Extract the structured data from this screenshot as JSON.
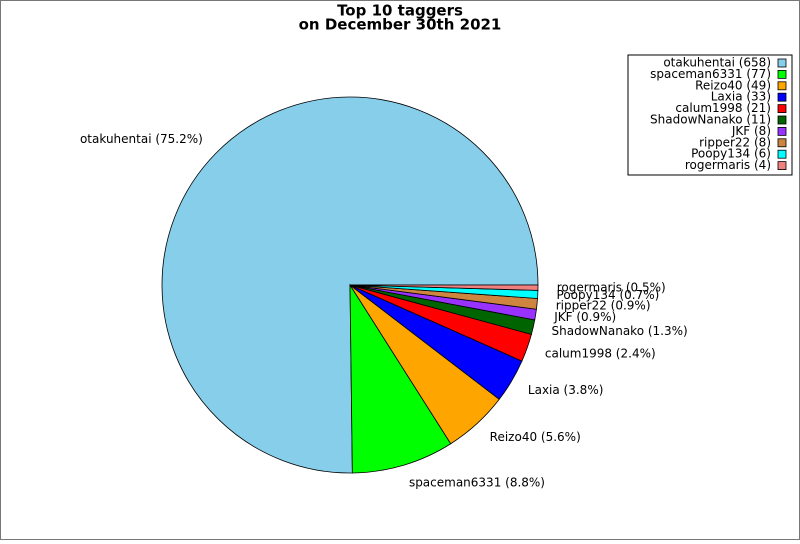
{
  "chart_data": {
    "type": "pie",
    "title": [
      "Top 10 taggers",
      "on December 30th 2021"
    ],
    "categories": [
      "otakuhentai (658)",
      "spaceman6331 (77)",
      "Reizo40 (49)",
      "Laxia (33)",
      "calum1998 (21)",
      "ShadowNanako (11)",
      "JKF (8)",
      "ripper22 (8)",
      "Poopy134 (6)",
      "rogermaris (4)"
    ],
    "values": [
      658,
      77,
      49,
      33,
      21,
      11,
      8,
      8,
      6,
      4
    ],
    "slice_labels": [
      "otakuhentai (75.2%)",
      "spaceman6331 (8.8%)",
      "Reizo40 (5.6%)",
      "Laxia (3.8%)",
      "calum1998 (2.4%)",
      "ShadowNanako (1.3%)",
      "JKF (0.9%)",
      "ripper22 (0.9%)",
      "Poopy134 (0.7%)",
      "rogermaris (0.5%)"
    ],
    "colors": [
      "#87ceeb",
      "#00ff00",
      "#ffa500",
      "#0000ff",
      "#ff0000",
      "#006400",
      "#9932ff",
      "#cd853f",
      "#00ffff",
      "#f08080"
    ],
    "legend": "upper right"
  }
}
